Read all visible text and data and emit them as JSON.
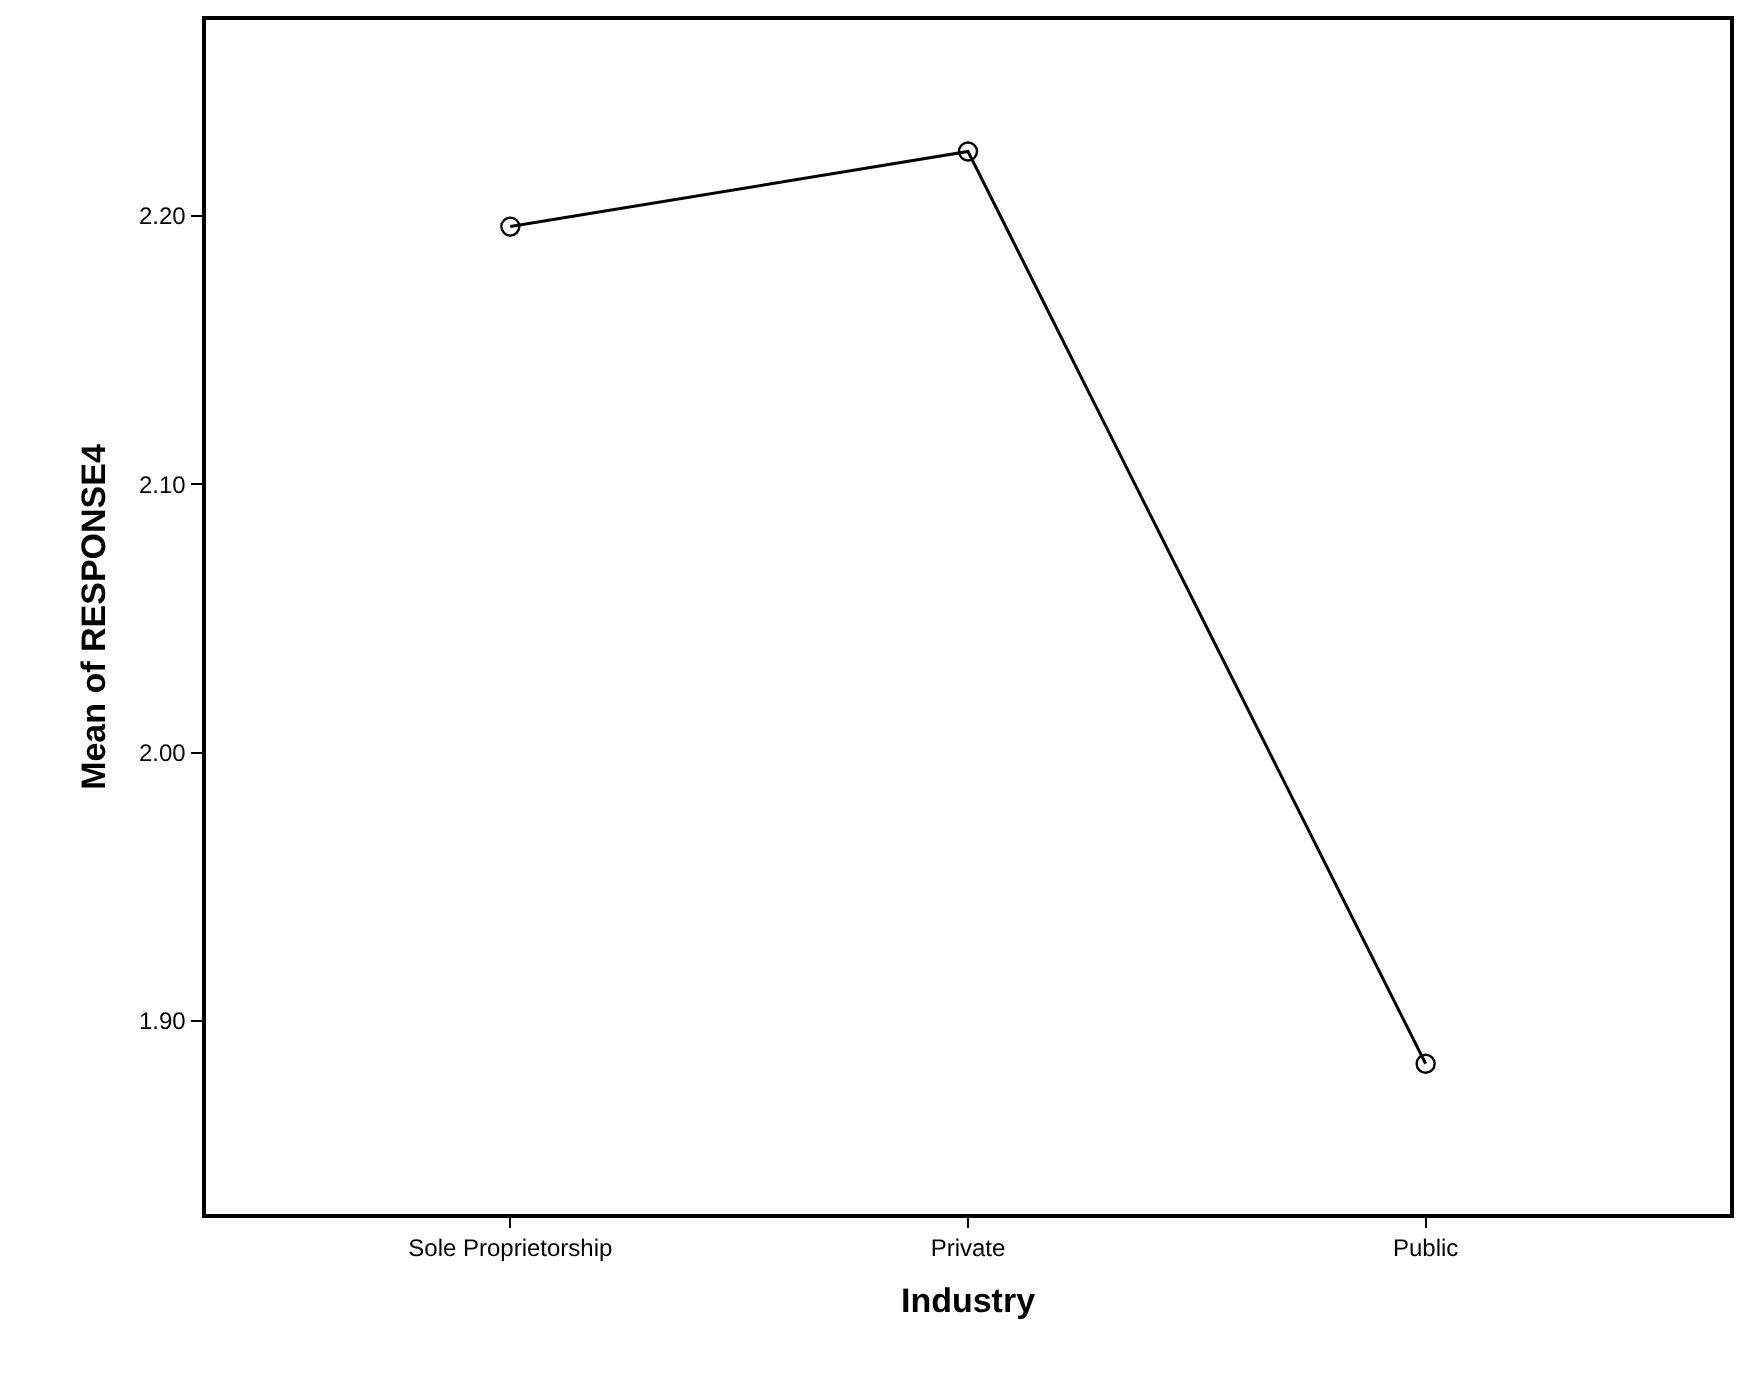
{
  "chart_data": {
    "type": "line",
    "xlabel": "Industry",
    "ylabel": "Mean of RESPONSE4",
    "categories": [
      "Sole Proprietorship",
      "Private",
      "Public"
    ],
    "series": [
      {
        "color": "#000000",
        "values": [
          2.196,
          2.224,
          1.884
        ]
      }
    ],
    "ylim": [
      1.828,
      2.273
    ],
    "yticks": [
      {
        "value": 1.9,
        "label": "1.90"
      },
      {
        "value": 2.0,
        "label": "2.00"
      },
      {
        "value": 2.1,
        "label": "2.10"
      },
      {
        "value": 2.2,
        "label": "2.20"
      }
    ],
    "marker": "circle",
    "line_style": "solid",
    "grid": false,
    "legend": false
  }
}
